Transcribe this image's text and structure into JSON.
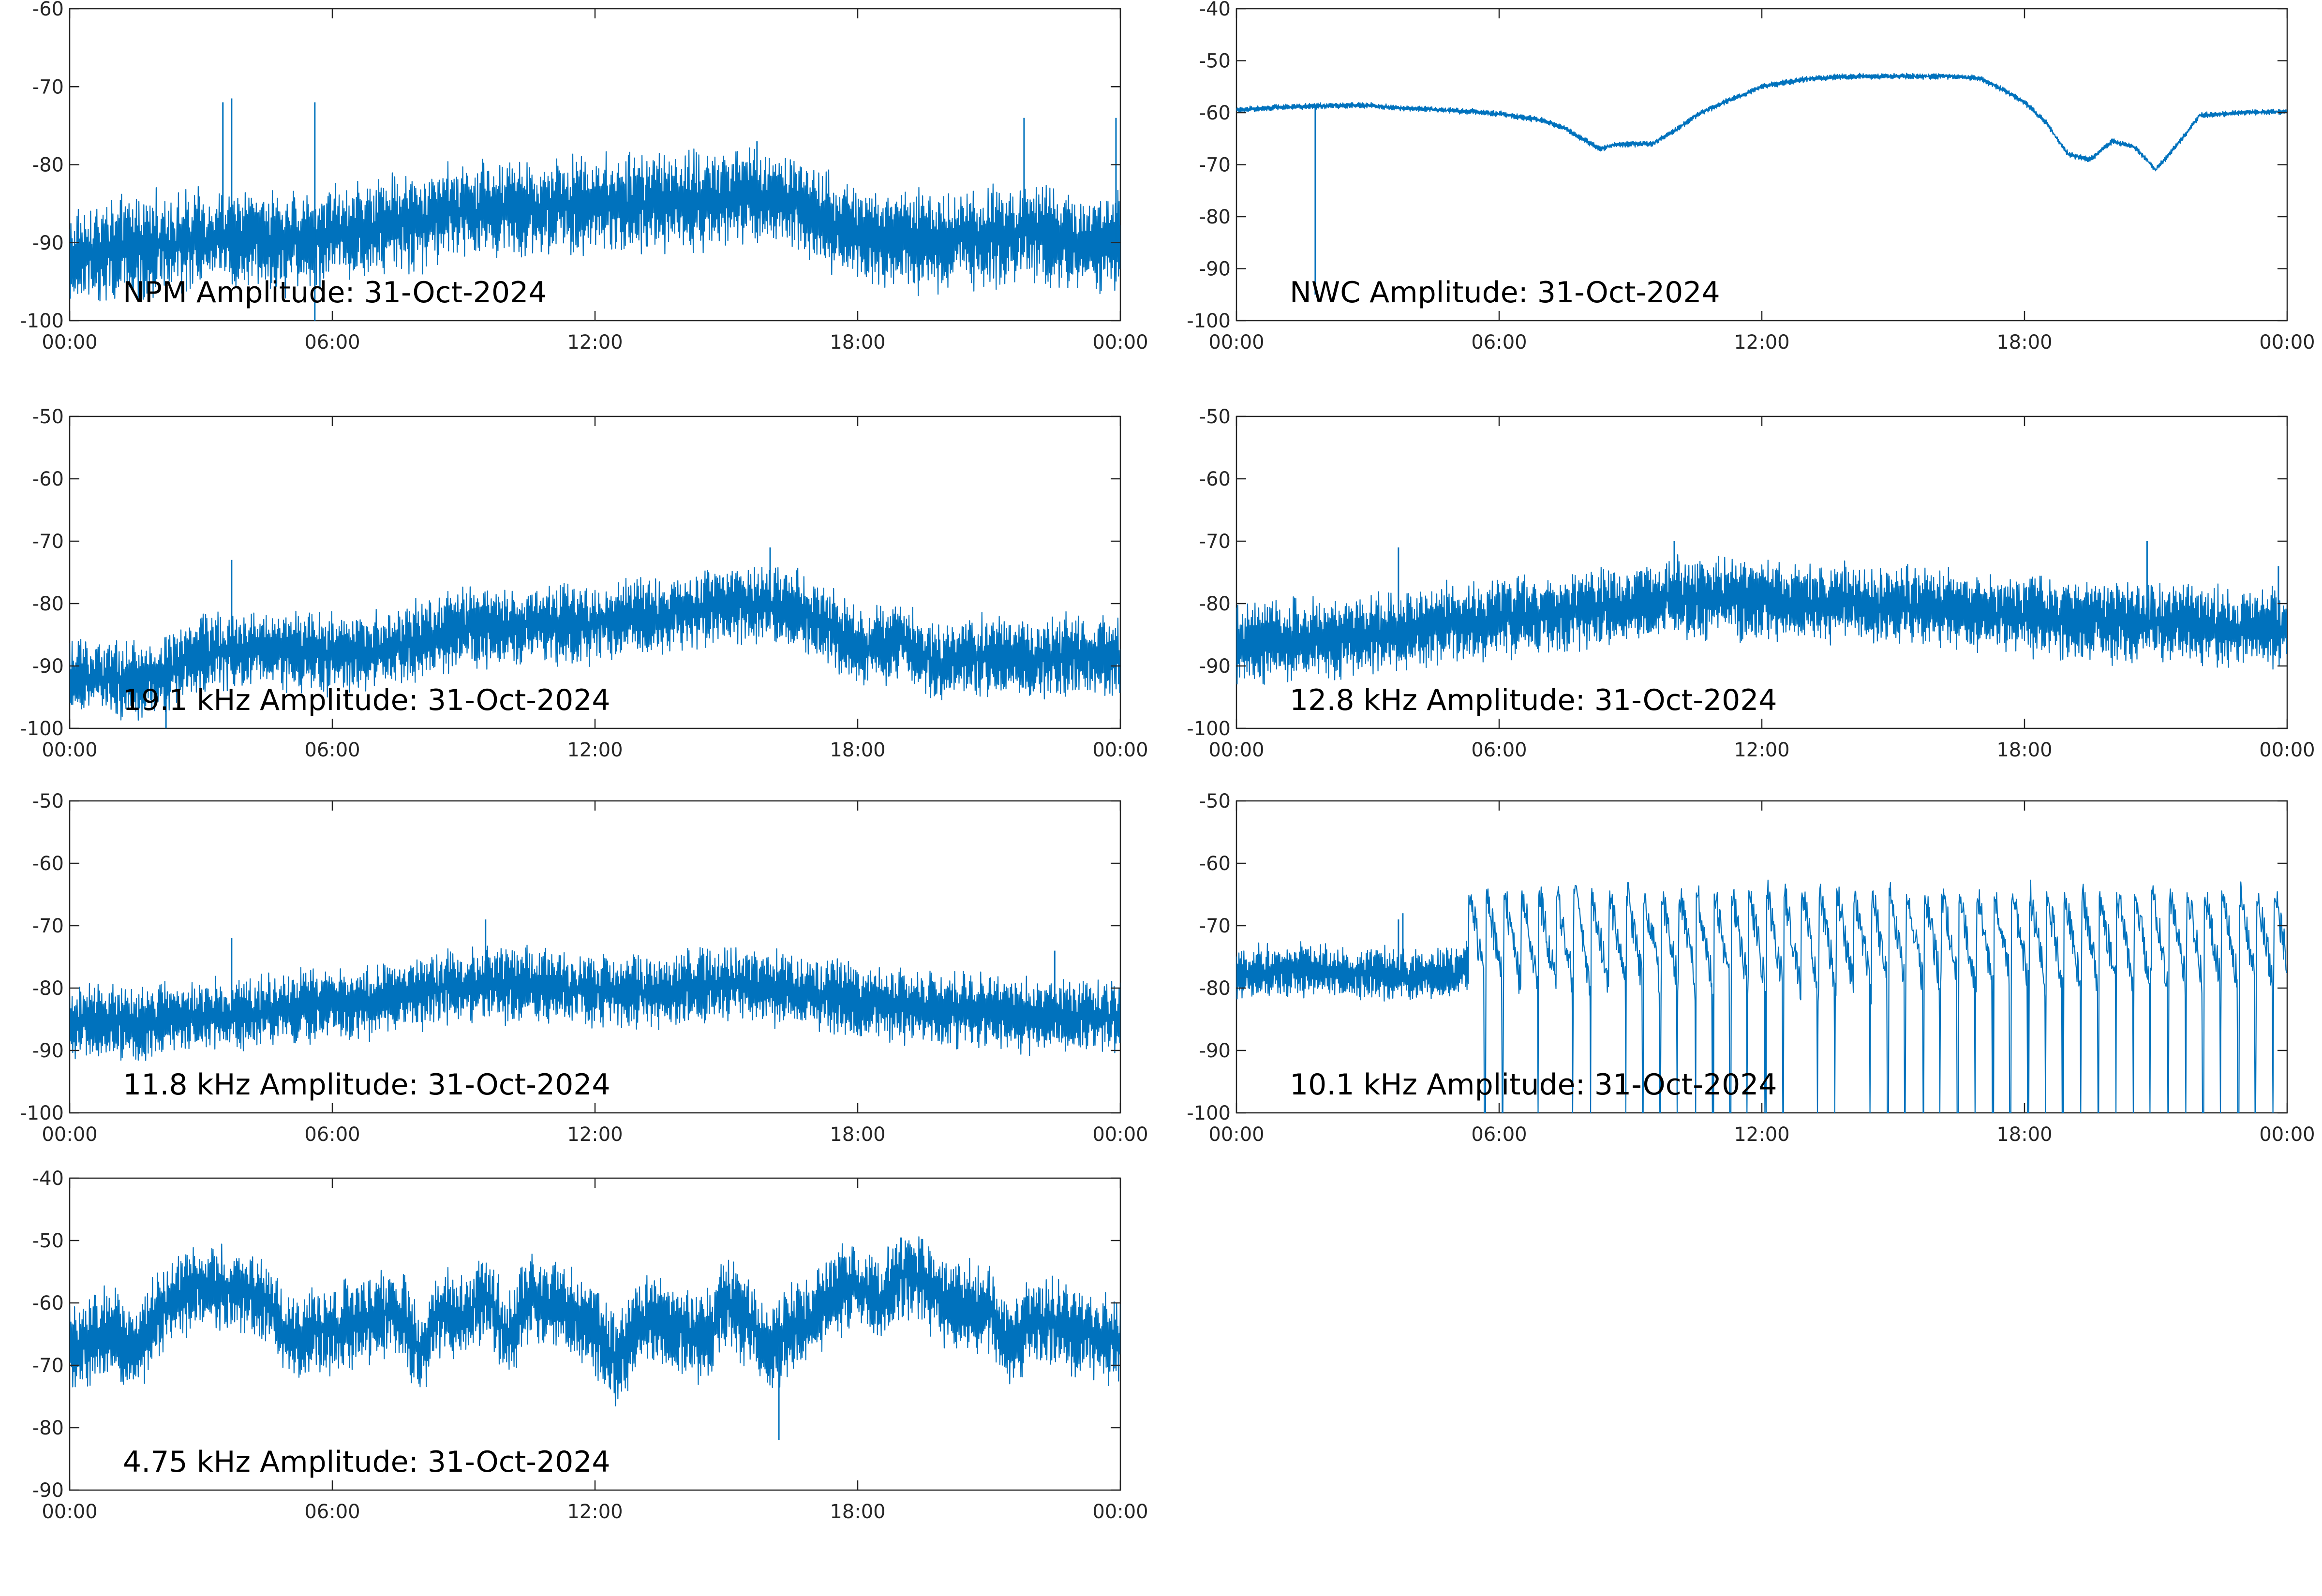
{
  "colors": {
    "series": "#0072bd",
    "axes": "#262626",
    "background": "#ffffff"
  },
  "chart_data": [
    {
      "type": "line",
      "title": "NPM Amplitude: 31-Oct-2024",
      "xlabel": "",
      "ylabel": "",
      "x_ticks": [
        "00:00",
        "06:00",
        "12:00",
        "18:00",
        "00:00"
      ],
      "y_ticks": [
        "-60",
        "-70",
        "-80",
        "-90",
        "-100"
      ],
      "ylim": [
        -100,
        -60
      ],
      "grid": false,
      "series": [
        {
          "x_hours": [
            0,
            1,
            2,
            3,
            4,
            5,
            6,
            7,
            8,
            9,
            10,
            11,
            12,
            13,
            14,
            15,
            16,
            17,
            18,
            19,
            20,
            21,
            22,
            23,
            24
          ],
          "values": [
            -92,
            -91,
            -90,
            -90,
            -89.5,
            -90,
            -89,
            -88,
            -87,
            -86,
            -85.5,
            -85.5,
            -85,
            -85,
            -84.5,
            -84.5,
            -84,
            -86,
            -89,
            -90,
            -89.5,
            -89.5,
            -88.5,
            -90,
            -90
          ],
          "spread": 4.5,
          "spikes": [
            [
              3.5,
              -72
            ],
            [
              3.7,
              -71.5
            ],
            [
              5.6,
              -72
            ],
            [
              5.6,
              -100
            ],
            [
              15.7,
              -77
            ],
            [
              21.8,
              -74
            ],
            [
              23.9,
              -74
            ]
          ]
        }
      ]
    },
    {
      "type": "line",
      "title": "NWC Amplitude: 31-Oct-2024",
      "xlabel": "",
      "ylabel": "",
      "x_ticks": [
        "00:00",
        "06:00",
        "12:00",
        "18:00",
        "00:00"
      ],
      "y_ticks": [
        "-40",
        "-50",
        "-60",
        "-70",
        "-80",
        "-90",
        "-100"
      ],
      "ylim": [
        -100,
        -40
      ],
      "grid": false,
      "series": [
        {
          "x_hours": [
            0,
            0.9,
            1.5,
            2,
            2.5,
            3,
            3.5,
            4,
            5,
            6,
            7,
            7.5,
            8,
            8.3,
            8.6,
            9,
            9.5,
            10,
            10.5,
            11,
            11.5,
            12,
            13,
            14,
            15,
            16,
            16.5,
            17,
            17.5,
            18,
            18.5,
            19,
            19.5,
            20,
            20.5,
            21,
            21.5,
            22,
            23,
            24
          ],
          "values": [
            -59.5,
            -59,
            -58.8,
            -58.7,
            -58.6,
            -58.6,
            -59,
            -59.2,
            -59.6,
            -60.2,
            -61.5,
            -63,
            -65.5,
            -67,
            -66.2,
            -66,
            -66,
            -63.5,
            -60.5,
            -58.5,
            -56.8,
            -55,
            -53.5,
            -53,
            -53,
            -53,
            -53,
            -53.5,
            -55.5,
            -58,
            -62,
            -68,
            -69,
            -65.5,
            -66.5,
            -71,
            -66,
            -60.5,
            -60,
            -59.8
          ],
          "spread": 0.4,
          "spikes": [
            [
              1.8,
              -95
            ]
          ]
        }
      ]
    },
    {
      "type": "line",
      "title": "19.1 kHz Amplitude: 31-Oct-2024",
      "xlabel": "",
      "ylabel": "",
      "x_ticks": [
        "00:00",
        "06:00",
        "12:00",
        "18:00",
        "00:00"
      ],
      "y_ticks": [
        "-50",
        "-60",
        "-70",
        "-80",
        "-90",
        "-100"
      ],
      "ylim": [
        -100,
        -50
      ],
      "grid": false,
      "series": [
        {
          "x_hours": [
            0,
            1,
            2,
            3,
            4,
            5,
            6,
            7,
            8,
            9,
            10,
            11,
            12,
            13,
            14,
            15,
            16,
            17,
            18,
            19,
            20,
            21,
            22,
            23,
            24
          ],
          "values": [
            -92,
            -92,
            -92,
            -88,
            -87.5,
            -87.5,
            -88,
            -88,
            -86,
            -84,
            -83.5,
            -83.5,
            -83,
            -82.5,
            -81.5,
            -80,
            -80.5,
            -82,
            -87.5,
            -86,
            -90,
            -88,
            -89,
            -88,
            -89
          ],
          "spread": 4.5,
          "spikes": [
            [
              2.2,
              -100
            ],
            [
              3.7,
              -73
            ],
            [
              16,
              -71
            ]
          ]
        }
      ]
    },
    {
      "type": "line",
      "title": "12.8 kHz Amplitude: 31-Oct-2024",
      "xlabel": "",
      "ylabel": "",
      "x_ticks": [
        "00:00",
        "06:00",
        "12:00",
        "18:00",
        "00:00"
      ],
      "y_ticks": [
        "-50",
        "-60",
        "-70",
        "-80",
        "-90",
        "-100"
      ],
      "ylim": [
        -100,
        -50
      ],
      "grid": false,
      "series": [
        {
          "x_hours": [
            0,
            1,
            2,
            3,
            4,
            5,
            6,
            7,
            8,
            9,
            10,
            11,
            12,
            13,
            14,
            15,
            16,
            17,
            18,
            19,
            20,
            21,
            22,
            23,
            24
          ],
          "values": [
            -86,
            -86,
            -85.5,
            -85,
            -84,
            -83,
            -82.5,
            -82,
            -81,
            -80,
            -79,
            -79,
            -79.5,
            -80,
            -80,
            -80.5,
            -81,
            -81.5,
            -82,
            -82.5,
            -83,
            -83,
            -83.5,
            -84,
            -84
          ],
          "spread": 4.5,
          "spikes": [
            [
              3.7,
              -71
            ],
            [
              10,
              -70
            ],
            [
              20.8,
              -70
            ],
            [
              23.8,
              -74
            ]
          ]
        }
      ]
    },
    {
      "type": "line",
      "title": "11.8 kHz Amplitude: 31-Oct-2024",
      "xlabel": "",
      "ylabel": "",
      "x_ticks": [
        "00:00",
        "06:00",
        "12:00",
        "18:00",
        "00:00"
      ],
      "y_ticks": [
        "-50",
        "-60",
        "-70",
        "-80",
        "-90",
        "-100"
      ],
      "ylim": [
        -100,
        -50
      ],
      "grid": false,
      "series": [
        {
          "x_hours": [
            0,
            1,
            2,
            3,
            4,
            5,
            6,
            7,
            8,
            9,
            10,
            11,
            12,
            13,
            14,
            15,
            16,
            17,
            18,
            19,
            20,
            21,
            22,
            23,
            24
          ],
          "values": [
            -86,
            -85.5,
            -85,
            -84.5,
            -84,
            -83,
            -82.5,
            -82,
            -80.5,
            -79.5,
            -79.5,
            -80,
            -80.5,
            -80.5,
            -80,
            -79.5,
            -80,
            -81,
            -82,
            -83,
            -83.5,
            -84,
            -84.5,
            -84.5,
            -84.5
          ],
          "spread": 4.2,
          "spikes": [
            [
              3.7,
              -72
            ],
            [
              9.5,
              -69
            ],
            [
              22.5,
              -74
            ]
          ]
        }
      ]
    },
    {
      "type": "line",
      "title": "10.1 kHz Amplitude: 31-Oct-2024",
      "xlabel": "",
      "ylabel": "",
      "x_ticks": [
        "00:00",
        "06:00",
        "12:00",
        "18:00",
        "00:00"
      ],
      "y_ticks": [
        "-50",
        "-60",
        "-70",
        "-80",
        "-90",
        "-100"
      ],
      "ylim": [
        -100,
        -50
      ],
      "grid": false,
      "series": [
        {
          "x_hours": [
            0,
            1,
            2,
            3,
            4,
            5,
            5.3,
            6,
            7,
            8,
            9,
            10,
            11,
            12,
            13,
            14,
            15,
            16,
            17,
            18,
            19,
            20,
            21,
            22,
            23,
            24
          ],
          "values": [
            -78,
            -77,
            -77,
            -77.5,
            -78,
            -78,
            -76,
            -75,
            -74,
            -73,
            -73,
            -73,
            -73,
            -73,
            -73,
            -73,
            -73,
            -73,
            -73,
            -73,
            -73,
            -73,
            -73,
            -74,
            -76,
            -77
          ],
          "spread": 3,
          "square_wave": {
            "start_hour": 5.3,
            "end_hour": 24,
            "period_hours": 0.4,
            "high": -64,
            "low": -80,
            "drop_to": -100
          },
          "spikes": [
            [
              3.7,
              -69
            ],
            [
              3.8,
              -68
            ]
          ]
        }
      ]
    },
    {
      "type": "line",
      "title": "4.75 kHz Amplitude: 31-Oct-2024",
      "xlabel": "",
      "ylabel": "",
      "x_ticks": [
        "00:00",
        "06:00",
        "12:00",
        "18:00",
        "00:00"
      ],
      "y_ticks": [
        "-40",
        "-50",
        "-60",
        "-70",
        "-80",
        "-90"
      ],
      "ylim": [
        -90,
        -40
      ],
      "grid": false,
      "series": [
        {
          "x_hours": [
            0,
            1,
            1.5,
            2,
            2.5,
            3,
            3.5,
            4,
            4.5,
            5,
            6,
            7,
            7.5,
            8,
            8.5,
            9,
            9.5,
            10,
            10.5,
            11,
            11.5,
            12,
            12.5,
            13,
            14,
            14.5,
            15,
            15.5,
            16,
            16.5,
            17,
            17.5,
            18,
            18.5,
            19,
            19.5,
            20,
            21,
            21.5,
            22,
            22.5,
            23,
            24
          ],
          "values": [
            -68,
            -64,
            -68,
            -62,
            -59,
            -57,
            -58,
            -58.5,
            -60,
            -66,
            -64,
            -62,
            -61,
            -68,
            -61,
            -63,
            -58,
            -66,
            -59,
            -60,
            -62,
            -64,
            -70,
            -63,
            -64,
            -66,
            -60,
            -63,
            -68,
            -64,
            -62,
            -58,
            -58,
            -60,
            -55,
            -57,
            -60,
            -61,
            -67,
            -62,
            -63,
            -65,
            -66
          ],
          "spread": 5,
          "spikes": [
            [
              16.2,
              -82
            ],
            [
              18.7,
              -51
            ]
          ]
        }
      ]
    }
  ]
}
